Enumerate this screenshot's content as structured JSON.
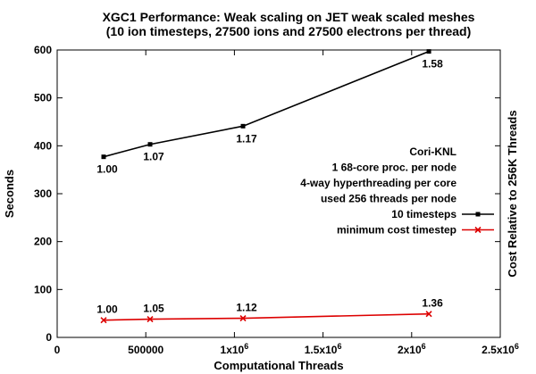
{
  "chart_data": {
    "type": "line",
    "title_line1": "XGC1 Performance: Weak scaling on JET weak scaled meshes",
    "title_line2": "(10 ion timesteps, 27500 ions and 27500 electrons per thread)",
    "xlabel": "Computational Threads",
    "ylabel": "Seconds",
    "y2label": "Cost Relative to 256K Threads",
    "xlim": [
      0,
      2500000
    ],
    "ylim": [
      0,
      600
    ],
    "x_ticks": [
      {
        "value": 0,
        "label": "0",
        "sup": ""
      },
      {
        "value": 500000,
        "label": "500000",
        "sup": ""
      },
      {
        "value": 1000000,
        "label": "1x10",
        "sup": "6"
      },
      {
        "value": 1500000,
        "label": "1.5x10",
        "sup": "6"
      },
      {
        "value": 2000000,
        "label": "2x10",
        "sup": "6"
      },
      {
        "value": 2500000,
        "label": "2.5x10",
        "sup": "6"
      }
    ],
    "y_ticks": [
      0,
      100,
      200,
      300,
      400,
      500,
      600
    ],
    "x": [
      262144,
      524288,
      1048576,
      2097152
    ],
    "series": [
      {
        "name": "10 timesteps",
        "color": "#000000",
        "marker": "square",
        "values": [
          377,
          403,
          441,
          597
        ],
        "labels": [
          "1.00",
          "1.07",
          "1.17",
          "1.58"
        ],
        "label_position": "below"
      },
      {
        "name": "minimum cost timestep",
        "color": "#dd0000",
        "marker": "cross",
        "values": [
          36,
          38,
          40,
          49
        ],
        "labels": [
          "1.00",
          "1.05",
          "1.12",
          "1.36"
        ],
        "label_position": "above"
      }
    ],
    "legend": {
      "position": "right",
      "header_lines": [
        "Cori-KNL",
        "1 68-core proc. per node",
        "4-way hyperthreading per core",
        "used 256 threads per node"
      ]
    }
  }
}
